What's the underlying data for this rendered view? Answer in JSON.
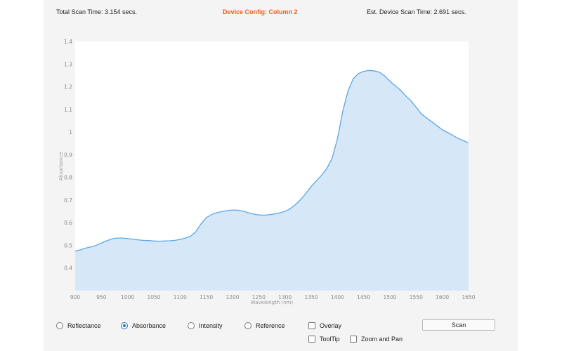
{
  "header": {
    "total_scan_time": "Total Scan Time: 3.154 secs.",
    "device_config": "Device Config: Column 2",
    "est_scan_time": "Est. Device Scan Time: 2.691 secs."
  },
  "chart_data": {
    "type": "area",
    "xlabel": "Wavelength (nm)",
    "ylabel": "Absorbance",
    "xlim": [
      900,
      1650
    ],
    "ylim": [
      0.3,
      1.4
    ],
    "xticks": [
      900,
      950,
      1000,
      1050,
      1100,
      1150,
      1200,
      1250,
      1300,
      1350,
      1400,
      1450,
      1500,
      1550,
      1600,
      1650
    ],
    "yticks": [
      "0.4",
      "0.5",
      "0.6",
      "0.7",
      "0.8",
      "0.9",
      "1",
      "1.1",
      "1.2",
      "1.3",
      "1.4"
    ],
    "grid": false,
    "colors": {
      "line": "#5aa7e6",
      "fill": "#d6e8f8"
    },
    "x": [
      900,
      910,
      920,
      930,
      940,
      950,
      960,
      970,
      980,
      990,
      1000,
      1010,
      1020,
      1030,
      1040,
      1050,
      1060,
      1070,
      1080,
      1090,
      1100,
      1110,
      1120,
      1130,
      1140,
      1150,
      1160,
      1170,
      1180,
      1190,
      1200,
      1210,
      1220,
      1230,
      1240,
      1250,
      1260,
      1270,
      1280,
      1290,
      1300,
      1310,
      1320,
      1330,
      1340,
      1350,
      1360,
      1370,
      1380,
      1390,
      1400,
      1410,
      1420,
      1430,
      1440,
      1450,
      1460,
      1470,
      1480,
      1490,
      1500,
      1510,
      1520,
      1530,
      1540,
      1550,
      1560,
      1570,
      1580,
      1590,
      1600,
      1610,
      1620,
      1630,
      1640,
      1650
    ],
    "values": [
      0.475,
      0.48,
      0.488,
      0.493,
      0.5,
      0.51,
      0.52,
      0.528,
      0.532,
      0.532,
      0.53,
      0.527,
      0.524,
      0.522,
      0.521,
      0.519,
      0.518,
      0.519,
      0.52,
      0.522,
      0.526,
      0.532,
      0.54,
      0.56,
      0.595,
      0.622,
      0.636,
      0.644,
      0.649,
      0.653,
      0.656,
      0.655,
      0.651,
      0.644,
      0.638,
      0.634,
      0.633,
      0.635,
      0.638,
      0.643,
      0.65,
      0.662,
      0.68,
      0.702,
      0.73,
      0.76,
      0.785,
      0.81,
      0.84,
      0.885,
      0.97,
      1.09,
      1.18,
      1.235,
      1.258,
      1.268,
      1.272,
      1.27,
      1.264,
      1.248,
      1.225,
      1.205,
      1.185,
      1.16,
      1.138,
      1.11,
      1.08,
      1.062,
      1.045,
      1.028,
      1.01,
      0.998,
      0.985,
      0.972,
      0.962,
      0.952
    ]
  },
  "controls": {
    "modes": [
      {
        "label": "Reflectance",
        "selected": false
      },
      {
        "label": "Absorbance",
        "selected": true
      },
      {
        "label": "Intensity",
        "selected": false
      },
      {
        "label": "Reference",
        "selected": false
      }
    ],
    "overlay_label": "Overlay",
    "tooltip_label": "ToolTip",
    "zoom_pan_label": "Zoom and Pan",
    "scan_label": "Scan"
  }
}
